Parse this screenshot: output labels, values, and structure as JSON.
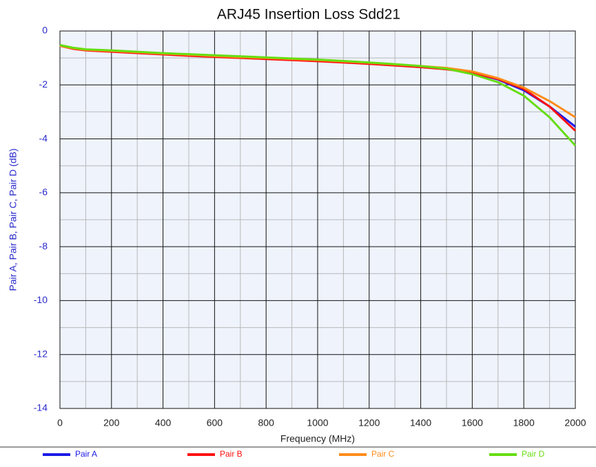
{
  "chart_data": {
    "type": "line",
    "title": "ARJ45 Insertion Loss Sdd21",
    "x_label": "Frequency (MHz)",
    "y_label": "Pair A, Pair B, Pair C, Pair D (dB)",
    "x": [
      0,
      50,
      100,
      200,
      300,
      400,
      500,
      600,
      700,
      800,
      900,
      1000,
      1100,
      1200,
      1300,
      1400,
      1500,
      1600,
      1700,
      1800,
      1900,
      2000
    ],
    "series": [
      {
        "name": "Pair A",
        "color": "#1a1ae6",
        "values": [
          -0.55,
          -0.65,
          -0.7,
          -0.75,
          -0.8,
          -0.85,
          -0.9,
          -0.95,
          -0.98,
          -1.02,
          -1.06,
          -1.1,
          -1.15,
          -1.2,
          -1.26,
          -1.32,
          -1.4,
          -1.55,
          -1.8,
          -2.2,
          -2.8,
          -3.55
        ]
      },
      {
        "name": "Pair B",
        "color": "#ff1010",
        "values": [
          -0.55,
          -0.66,
          -0.72,
          -0.77,
          -0.82,
          -0.87,
          -0.92,
          -0.96,
          -1.0,
          -1.04,
          -1.08,
          -1.12,
          -1.17,
          -1.22,
          -1.28,
          -1.34,
          -1.42,
          -1.55,
          -1.78,
          -2.15,
          -2.8,
          -3.7
        ]
      },
      {
        "name": "Pair C",
        "color": "#ff8c1a",
        "values": [
          -0.55,
          -0.64,
          -0.7,
          -0.74,
          -0.79,
          -0.84,
          -0.88,
          -0.93,
          -0.97,
          -1.0,
          -1.04,
          -1.08,
          -1.13,
          -1.18,
          -1.24,
          -1.3,
          -1.37,
          -1.5,
          -1.75,
          -2.1,
          -2.6,
          -3.2
        ]
      },
      {
        "name": "Pair D",
        "color": "#66dd11",
        "values": [
          -0.52,
          -0.62,
          -0.68,
          -0.72,
          -0.77,
          -0.82,
          -0.86,
          -0.9,
          -0.94,
          -0.98,
          -1.02,
          -1.06,
          -1.11,
          -1.17,
          -1.23,
          -1.3,
          -1.4,
          -1.6,
          -1.9,
          -2.4,
          -3.2,
          -4.25
        ]
      }
    ],
    "xlim": [
      0,
      2000
    ],
    "ylim": [
      -14,
      0
    ],
    "xticks": [
      0,
      200,
      400,
      600,
      800,
      1000,
      1200,
      1400,
      1600,
      1800,
      2000
    ],
    "yticks": [
      0,
      -2,
      -4,
      -6,
      -8,
      -10,
      -12,
      -14
    ],
    "xminor": [
      100,
      300,
      500,
      700,
      900,
      1100,
      1300,
      1500,
      1700,
      1900
    ],
    "yminor": [
      -1,
      -3,
      -5,
      -7,
      -9,
      -11,
      -13
    ],
    "grid": true,
    "legend": "bottom"
  }
}
